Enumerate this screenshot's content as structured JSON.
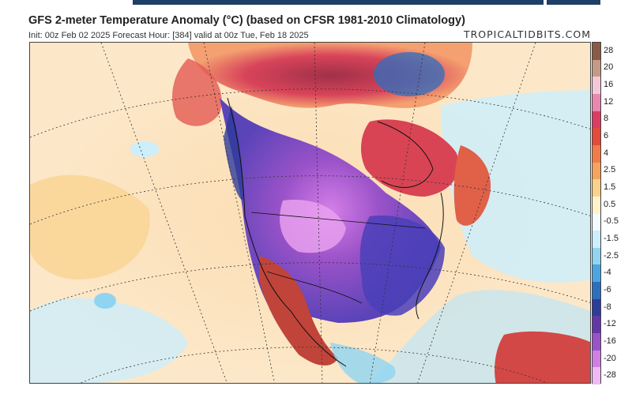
{
  "header": {
    "title": "GFS 2-meter Temperature Anomaly (°C) (based on CFSR 1981-2010 Climatology)",
    "subtitle": "Init: 00z Feb 02 2025   Forecast Hour: [384]   valid at 00z Tue, Feb 18 2025",
    "credit": "TROPICALTIDBITS.COM"
  },
  "colorbar": {
    "labels": [
      "28",
      "20",
      "16",
      "12",
      "8",
      "6",
      "4",
      "2.5",
      "1.5",
      "0.5",
      "-0.5",
      "-1.5",
      "-2.5",
      "-4",
      "-6",
      "-8",
      "-12",
      "-16",
      "-20",
      "-28"
    ],
    "colors": [
      "#8a5a44",
      "#c49a86",
      "#f2c8d8",
      "#ea86b0",
      "#dc3c64",
      "#e64a3a",
      "#f27a46",
      "#f6a35c",
      "#fad28a",
      "#fff2c8",
      "#f4fbff",
      "#cdeefb",
      "#8fd4f0",
      "#4aa6e0",
      "#2c6fc0",
      "#2e3c9a",
      "#6238a8",
      "#9a52c8",
      "#d07ee6",
      "#f0b8f4"
    ]
  },
  "map_layers": {
    "regions": [
      {
        "name": "arctic-warm-anomaly",
        "color": "#c83c5a"
      },
      {
        "name": "greenland-warm-anomaly",
        "color": "#d84454"
      },
      {
        "name": "north-america-cold-anomaly",
        "color": "#8a4ed0"
      },
      {
        "name": "eastern-us-cold-anomaly",
        "color": "#4a40b8"
      },
      {
        "name": "mexico-warm-anomaly",
        "color": "#c0443a"
      },
      {
        "name": "pacific-neutral-warm",
        "color": "#f8d4a8"
      },
      {
        "name": "atlantic-neutral",
        "color": "#bfe6f6"
      },
      {
        "name": "caribbean-warm-anomaly",
        "color": "#d24846"
      }
    ]
  }
}
